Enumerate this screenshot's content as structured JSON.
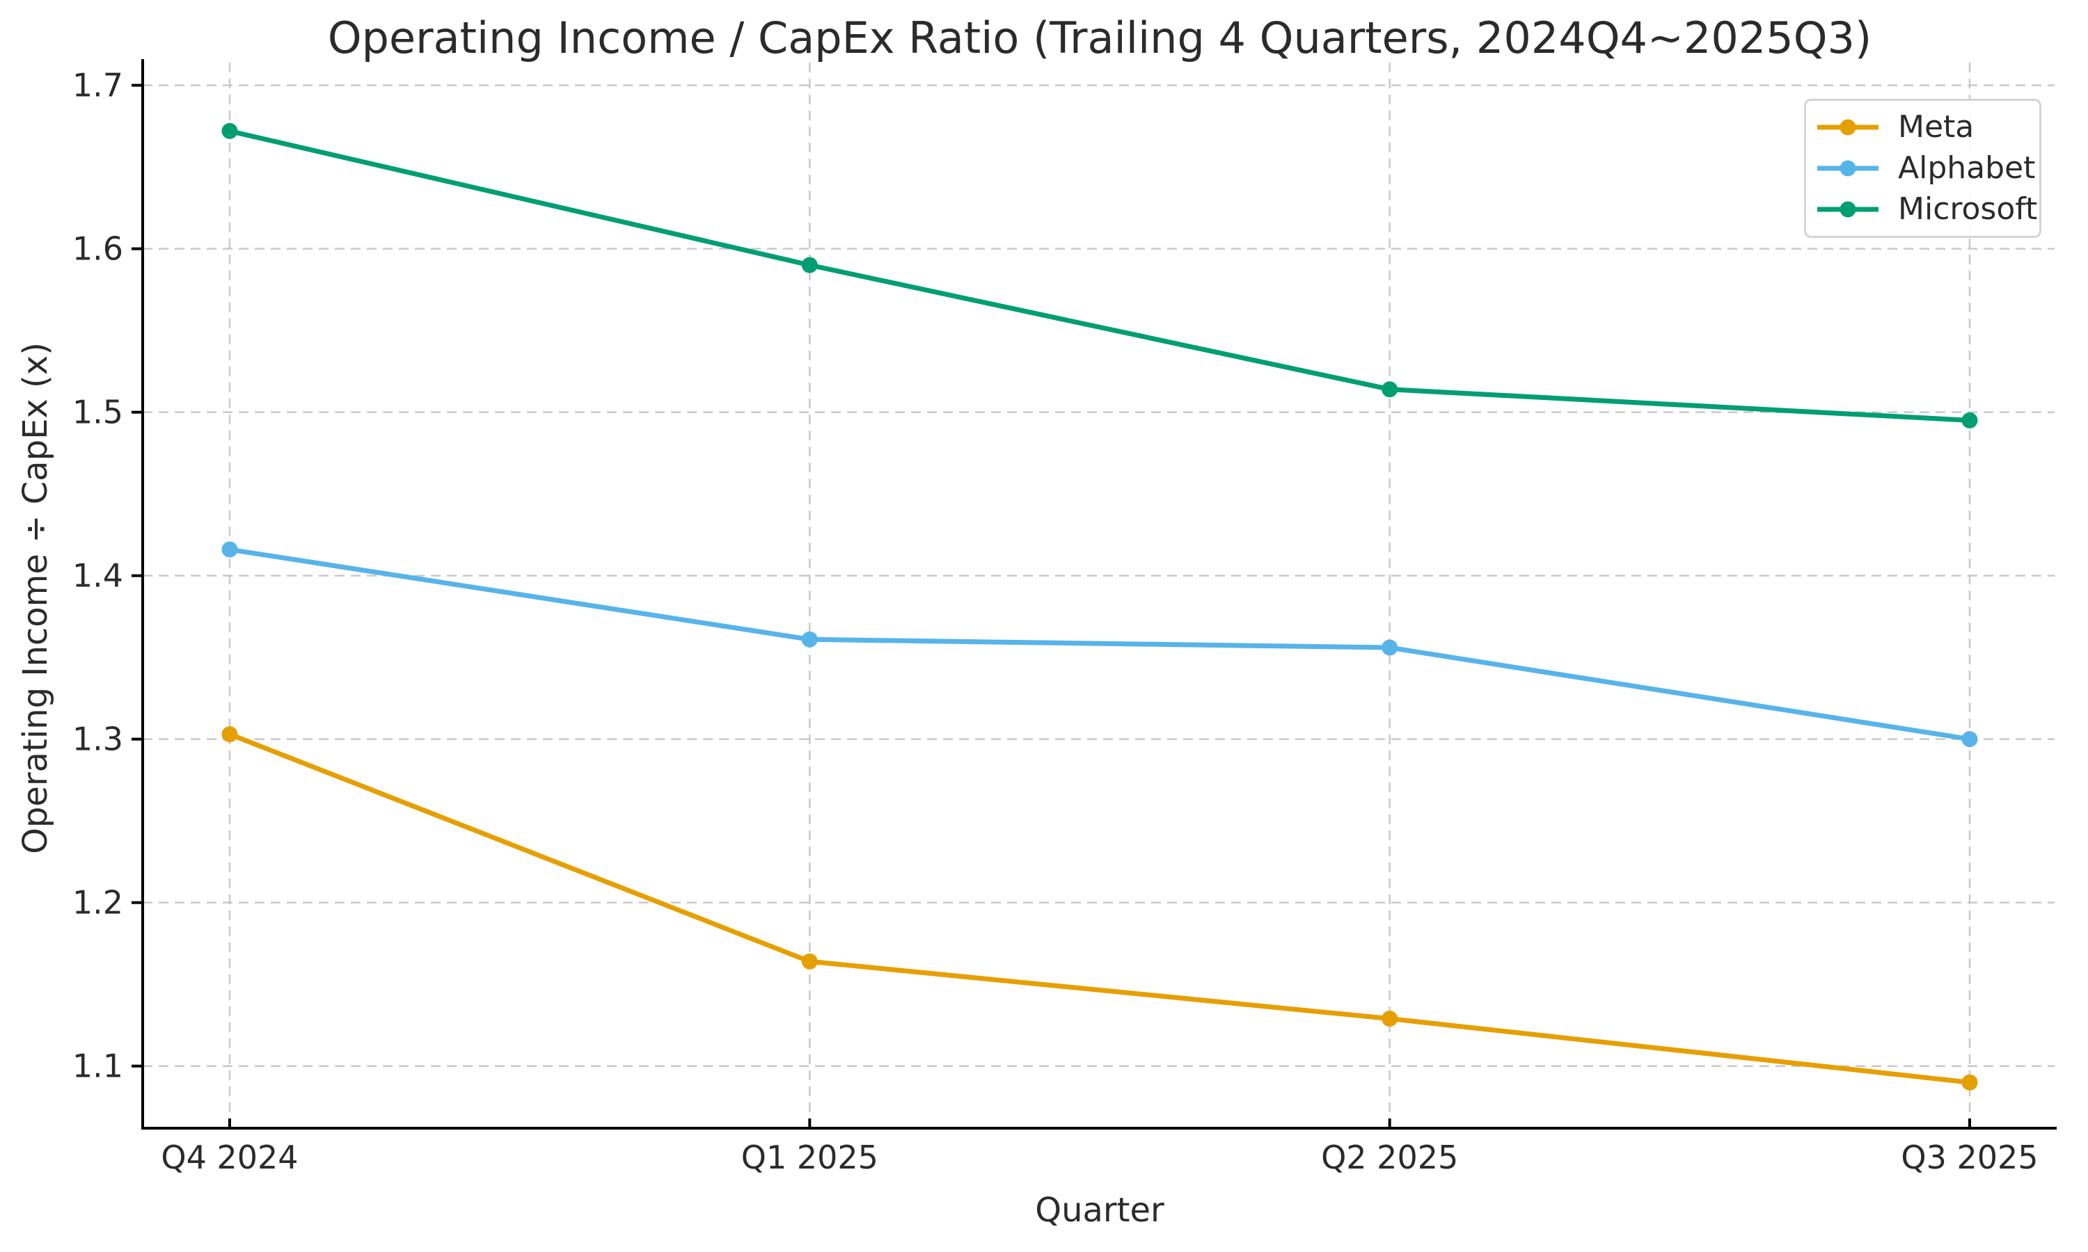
{
  "title": "Operating Income / CapEx Ratio (Trailing 4 Quarters, 2024Q4~2025Q3)",
  "chart_data": {
    "type": "line",
    "title": "Operating Income / CapEx Ratio (Trailing 4 Quarters, 2024Q4~2025Q3)",
    "xlabel": "Quarter",
    "ylabel": "Operating Income ÷ CapEx (x)",
    "categories": [
      "Q4 2024",
      "Q1 2025",
      "Q2 2025",
      "Q3 2025"
    ],
    "series": [
      {
        "name": "Meta",
        "color": "#E69F00",
        "values": [
          1.303,
          1.164,
          1.129,
          1.09
        ]
      },
      {
        "name": "Alphabet",
        "color": "#56B4E9",
        "values": [
          1.416,
          1.361,
          1.356,
          1.3
        ]
      },
      {
        "name": "Microsoft",
        "color": "#009E73",
        "values": [
          1.672,
          1.59,
          1.514,
          1.495
        ]
      }
    ],
    "yticks": [
      1.1,
      1.2,
      1.3,
      1.4,
      1.5,
      1.6,
      1.7
    ],
    "ylim": [
      1.062,
      1.716
    ],
    "grid": true,
    "grid_style": "dashed",
    "grid_color": "#c9c9c9",
    "axis_color": "#000000",
    "text_color": "#2b2b2b",
    "legend_position": "top-right",
    "marker": "circle"
  }
}
